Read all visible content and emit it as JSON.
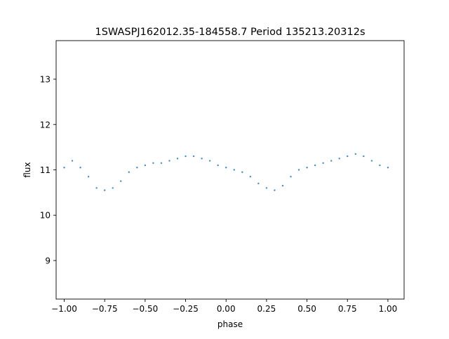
{
  "chart_data": {
    "type": "scatter",
    "title": "1SWASPJ162012.35-184558.7 Period 135213.20312s",
    "xlabel": "phase",
    "ylabel": "flux",
    "xlim": [
      -1.05,
      1.1
    ],
    "ylim": [
      8.15,
      13.85
    ],
    "xticks": [
      -1.0,
      -0.75,
      -0.5,
      -0.25,
      0.0,
      0.25,
      0.5,
      0.75,
      1.0
    ],
    "xtick_labels": [
      "−1.00",
      "−0.75",
      "−0.50",
      "−0.25",
      "0.00",
      "0.25",
      "0.50",
      "0.75",
      "1.00"
    ],
    "yticks": [
      9,
      10,
      11,
      12,
      13
    ],
    "ytick_labels": [
      "9",
      "10",
      "11",
      "12",
      "13"
    ],
    "grid": false,
    "legend": "none",
    "point_color": "#1f77b4",
    "series": [
      {
        "values_note_free": true,
        "points": [
          [
            -1.0,
            11.05
          ],
          [
            -0.95,
            11.2
          ],
          [
            -0.9,
            11.05
          ],
          [
            -0.85,
            10.85
          ],
          [
            -0.8,
            10.6
          ],
          [
            -0.75,
            10.55
          ],
          [
            -0.7,
            10.6
          ],
          [
            -0.65,
            10.75
          ],
          [
            -0.6,
            10.95
          ],
          [
            -0.55,
            11.05
          ],
          [
            -0.5,
            11.1
          ],
          [
            -0.45,
            11.15
          ],
          [
            -0.4,
            11.15
          ],
          [
            -0.35,
            11.2
          ],
          [
            -0.3,
            11.25
          ],
          [
            -0.25,
            11.3
          ],
          [
            -0.2,
            11.3
          ],
          [
            -0.15,
            11.25
          ],
          [
            -0.1,
            11.2
          ],
          [
            -0.05,
            11.1
          ],
          [
            0.0,
            11.05
          ],
          [
            0.05,
            11.0
          ],
          [
            0.1,
            10.95
          ],
          [
            0.15,
            10.85
          ],
          [
            0.2,
            10.7
          ],
          [
            0.25,
            10.6
          ],
          [
            0.3,
            10.55
          ],
          [
            0.35,
            10.65
          ],
          [
            0.4,
            10.85
          ],
          [
            0.45,
            11.0
          ],
          [
            0.5,
            11.05
          ],
          [
            0.55,
            11.1
          ],
          [
            0.6,
            11.15
          ],
          [
            0.65,
            11.2
          ],
          [
            0.7,
            11.25
          ],
          [
            0.75,
            11.3
          ],
          [
            0.8,
            11.35
          ],
          [
            0.85,
            11.3
          ],
          [
            0.9,
            11.2
          ],
          [
            0.95,
            11.1
          ],
          [
            1.0,
            11.05
          ]
        ]
      }
    ]
  }
}
